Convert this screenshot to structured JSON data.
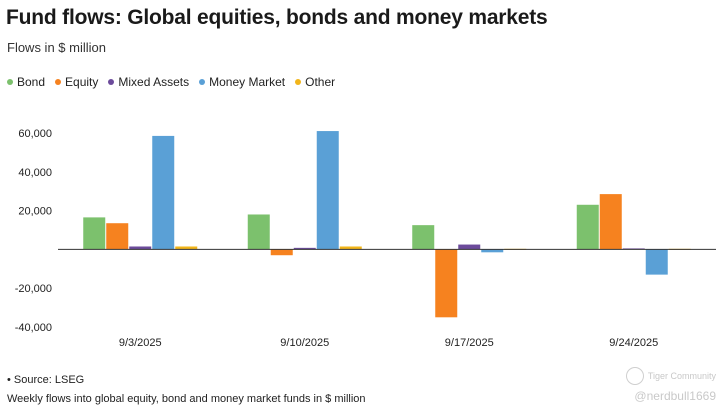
{
  "title": "Fund flows: Global equities, bonds and money markets",
  "subtitle": "Flows in $ million",
  "legend": [
    {
      "name": "Bond",
      "color": "#7cc16d"
    },
    {
      "name": "Equity",
      "color": "#f6821f"
    },
    {
      "name": "Mixed Assets",
      "color": "#6c4b9b"
    },
    {
      "name": "Money Market",
      "color": "#5aa0d6"
    },
    {
      "name": "Other",
      "color": "#f2b51a"
    }
  ],
  "chart_data": {
    "type": "bar",
    "title": "Fund flows: Global equities, bonds and money markets",
    "subtitle": "Flows in $ million",
    "categories": [
      "9/3/2025",
      "9/10/2025",
      "9/17/2025",
      "9/24/2025"
    ],
    "series": [
      {
        "name": "Bond",
        "color": "#7cc16d",
        "values": [
          16500,
          18000,
          12500,
          23000
        ]
      },
      {
        "name": "Equity",
        "color": "#f6821f",
        "values": [
          13500,
          -3000,
          -35000,
          28500
        ]
      },
      {
        "name": "Mixed Assets",
        "color": "#6c4b9b",
        "values": [
          1500,
          800,
          2500,
          500
        ]
      },
      {
        "name": "Money Market",
        "color": "#5aa0d6",
        "values": [
          58500,
          61000,
          -1500,
          -13000
        ]
      },
      {
        "name": "Other",
        "color": "#f2b51a",
        "values": [
          1500,
          1500,
          300,
          300
        ]
      }
    ],
    "yticks": [
      "60,000",
      "40,000",
      "20,000",
      "",
      "-20,000",
      "-40,000"
    ],
    "ytick_values": [
      60000,
      40000,
      20000,
      0,
      -20000,
      -40000
    ],
    "ylim": [
      -40000,
      60000
    ],
    "grid": false,
    "legend_position": "top-left"
  },
  "footer": {
    "source": "• Source: LSEG",
    "description": "Weekly flows into global equity, bond and money market funds in $ million"
  },
  "watermark": {
    "brand": "Tiger Community",
    "handle": "@nerdbull1669"
  }
}
